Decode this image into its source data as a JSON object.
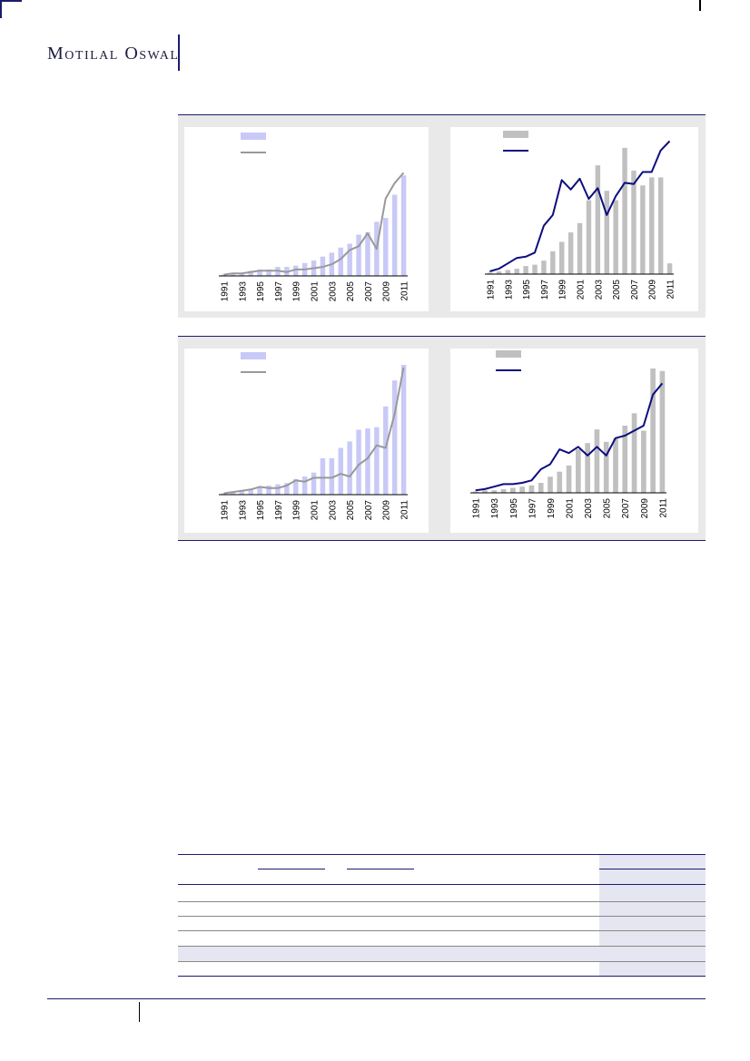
{
  "header": {
    "logo_text": "Motilal Oswal"
  },
  "chart_data": [
    {
      "type": "bar",
      "categories": [
        "1991",
        "1992",
        "1993",
        "1994",
        "1995",
        "1996",
        "1997",
        "1998",
        "1999",
        "2000",
        "2001",
        "2002",
        "2003",
        "2004",
        "2005",
        "2006",
        "2007",
        "2008",
        "2009",
        "2010",
        "2011"
      ],
      "x_tick_labels": [
        "1991",
        "1993",
        "1995",
        "1997",
        "1999",
        "2001",
        "2003",
        "2005",
        "2007",
        "2009",
        "2011"
      ],
      "ylim": [
        0,
        100
      ],
      "series": [
        {
          "type": "bar",
          "color": "#c9c9f7",
          "values": [
            1,
            2,
            2,
            4,
            5,
            5,
            7,
            7,
            8,
            10,
            12,
            15,
            18,
            22,
            25,
            32,
            34,
            42,
            45,
            63,
            78
          ]
        },
        {
          "type": "line",
          "color": "#999999",
          "values": [
            1,
            2,
            2,
            3,
            4,
            4,
            4,
            3,
            5,
            5,
            6,
            7,
            9,
            13,
            20,
            23,
            33,
            21,
            60,
            72,
            80
          ]
        }
      ],
      "legend": "top-left"
    },
    {
      "type": "bar",
      "categories": [
        "1991",
        "1992",
        "1993",
        "1994",
        "1995",
        "1996",
        "1997",
        "1998",
        "1999",
        "2000",
        "2001",
        "2002",
        "2003",
        "2004",
        "2005",
        "2006",
        "2007",
        "2008",
        "2009",
        "2010",
        "2011"
      ],
      "x_tick_labels": [
        "1991",
        "1993",
        "1995",
        "1997",
        "1999",
        "2001",
        "2003",
        "2005",
        "2007",
        "2009",
        "2011"
      ],
      "ylim": [
        0,
        100
      ],
      "series": [
        {
          "type": "bar",
          "color": "#c0c0c0",
          "values": [
            1,
            2,
            3,
            4,
            6,
            7,
            10,
            17,
            24,
            31,
            38,
            55,
            81,
            62,
            55,
            94,
            77,
            66,
            72,
            72,
            8
          ]
        },
        {
          "type": "line",
          "color": "#0d0d80",
          "values": [
            2,
            4,
            8,
            12,
            13,
            16,
            36,
            44,
            70,
            63,
            71,
            56,
            64,
            44,
            58,
            68,
            67,
            76,
            76,
            92,
            99
          ]
        }
      ],
      "legend": "top-left"
    },
    {
      "type": "bar",
      "categories": [
        "1991",
        "1992",
        "1993",
        "1994",
        "1995",
        "1996",
        "1997",
        "1998",
        "1999",
        "2000",
        "2001",
        "2002",
        "2003",
        "2004",
        "2005",
        "2006",
        "2007",
        "2008",
        "2009",
        "2010",
        "2011"
      ],
      "x_tick_labels": [
        "1991",
        "1993",
        "1995",
        "1997",
        "1999",
        "2001",
        "2003",
        "2005",
        "2007",
        "2009",
        "2011"
      ],
      "ylim": [
        0,
        100
      ],
      "series": [
        {
          "type": "bar",
          "color": "#c9c9f7",
          "values": [
            1,
            2,
            3,
            4,
            6,
            7,
            8,
            9,
            12,
            14,
            17,
            28,
            28,
            36,
            41,
            50,
            51,
            52,
            68,
            88,
            100
          ]
        },
        {
          "type": "line",
          "color": "#999999",
          "values": [
            1,
            2,
            3,
            4,
            6,
            5,
            5,
            7,
            11,
            10,
            13,
            13,
            13,
            16,
            14,
            23,
            28,
            38,
            36,
            62,
            98
          ]
        }
      ],
      "legend": "top-left"
    },
    {
      "type": "bar",
      "categories": [
        "1991",
        "1992",
        "1993",
        "1994",
        "1995",
        "1996",
        "1997",
        "1998",
        "1999",
        "2000",
        "2001",
        "2002",
        "2003",
        "2004",
        "2005",
        "2006",
        "2007",
        "2008",
        "2009",
        "2010",
        "2011"
      ],
      "x_tick_labels": [
        "1991",
        "1993",
        "1995",
        "1997",
        "1999",
        "2001",
        "2003",
        "2005",
        "2007",
        "2009",
        "2011"
      ],
      "ylim": [
        0,
        100
      ],
      "series": [
        {
          "type": "bar",
          "color": "#c0c0c0",
          "values": [
            1,
            2,
            2,
            3,
            4,
            5,
            6,
            8,
            13,
            17,
            22,
            35,
            40,
            51,
            41,
            44,
            54,
            64,
            50,
            100,
            98
          ]
        },
        {
          "type": "line",
          "color": "#0d0d80",
          "values": [
            2,
            3,
            5,
            7,
            7,
            8,
            10,
            19,
            23,
            35,
            32,
            37,
            30,
            37,
            30,
            44,
            46,
            50,
            54,
            79,
            88
          ]
        }
      ],
      "legend": "top-left"
    }
  ]
}
